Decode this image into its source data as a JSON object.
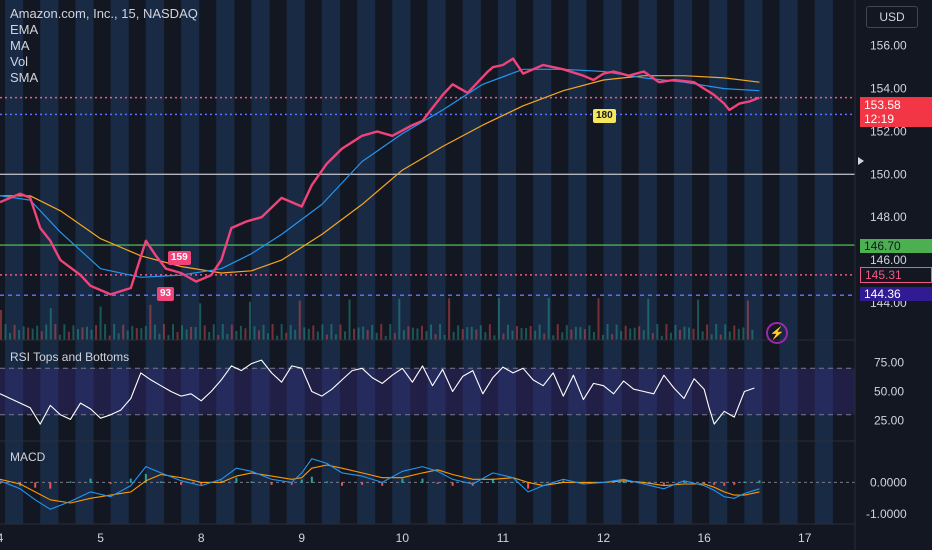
{
  "header": {
    "title": "Amazon.com, Inc., 15, NASDAQ",
    "indicators": [
      "EMA",
      "MA",
      "Vol",
      "SMA"
    ],
    "currency": "USD"
  },
  "labels": {
    "rsi": "RSI Tops and Bottoms",
    "macd": "MACD",
    "marker_159": "159",
    "marker_93": "93",
    "marker_180": "180",
    "last_price": "153.58",
    "countdown": "12:19"
  },
  "price_tags": [
    {
      "value": "146.70",
      "bg": "#4caf50",
      "fg": "#131722"
    },
    {
      "value": "145.31",
      "bg": "#131722",
      "fg": "#f05a82"
    },
    {
      "value": "144.36",
      "bg": "#311b92",
      "fg": "#ffffff"
    }
  ],
  "colors": {
    "price": "#f0437a",
    "ema": "#2196f3",
    "sma": "#f5a623",
    "session_band": "#1f3b60",
    "rsi": "#ffffff",
    "macd": "#2196f3",
    "signal": "#ff9800",
    "green_line": "#4caf50",
    "ref_line": "#b2b5be"
  },
  "chart_data": [
    {
      "type": "line",
      "title": "Amazon.com, Inc., 15, NASDAQ",
      "x_ticks": [
        "4",
        "5",
        "8",
        "9",
        "10",
        "11",
        "12",
        "16",
        "17"
      ],
      "y_ticks": [
        156.0,
        154.0,
        152.0,
        150.0,
        148.0,
        146.0,
        144.0
      ],
      "ylim": [
        143.3,
        157.2
      ],
      "xlim": [
        0,
        8.5
      ],
      "grid": false,
      "horizontal_levels": [
        {
          "value": 150.0,
          "style": "solid",
          "color": "#b2b5be"
        },
        {
          "value": 146.7,
          "style": "solid",
          "color": "#4caf50"
        },
        {
          "value": 145.31,
          "style": "dotted",
          "color": "#f05a82"
        },
        {
          "value": 144.36,
          "style": "dashed",
          "color": "#5b6cff"
        },
        {
          "value": 153.58,
          "style": "dotted",
          "color": "#f05a82"
        },
        {
          "value": 152.8,
          "style": "dotted",
          "color": "#5b6cff"
        }
      ],
      "series": [
        {
          "name": "",
          "x": [
            0.0,
            0.2,
            0.3,
            0.35,
            0.4,
            0.5,
            0.6,
            0.8,
            0.9,
            1.0,
            1.1,
            1.3,
            1.45,
            1.55,
            1.65,
            1.8,
            1.95,
            2.1,
            2.2,
            2.3,
            2.45,
            2.6,
            2.8,
            3.0,
            3.1,
            3.25,
            3.4,
            3.5,
            3.6,
            3.75,
            3.9,
            4.1,
            4.2,
            4.3,
            4.4,
            4.5,
            4.65,
            4.75,
            4.85,
            4.9,
            5.0,
            5.1,
            5.2,
            5.3,
            5.4,
            5.6,
            5.8,
            5.9,
            6.0,
            6.1,
            6.25,
            6.4,
            6.55,
            6.7,
            6.9,
            7.0,
            7.1,
            7.2,
            7.25,
            7.35,
            7.45,
            7.55
          ],
          "values": [
            148.7,
            149.1,
            148.9,
            148.2,
            147.5,
            146.9,
            146.0,
            145.3,
            144.8,
            144.6,
            144.4,
            144.7,
            146.9,
            146.2,
            145.6,
            145.4,
            145.0,
            145.3,
            146.0,
            147.5,
            147.8,
            148.0,
            148.9,
            148.5,
            149.5,
            150.5,
            151.2,
            151.5,
            151.8,
            152.0,
            151.8,
            152.3,
            152.5,
            153.1,
            153.7,
            154.2,
            153.8,
            154.3,
            154.8,
            155.0,
            155.1,
            155.4,
            154.7,
            154.9,
            155.1,
            154.9,
            154.6,
            154.4,
            154.7,
            154.8,
            154.6,
            154.8,
            154.3,
            154.4,
            154.3,
            154.0,
            153.7,
            153.3,
            153.0,
            153.3,
            153.4,
            153.58
          ]
        },
        {
          "name": "EMA",
          "x": [
            0.0,
            0.3,
            0.6,
            1.0,
            1.4,
            1.8,
            2.2,
            2.5,
            2.8,
            3.2,
            3.6,
            4.0,
            4.4,
            4.8,
            5.2,
            5.6,
            6.0,
            6.4,
            6.8,
            7.2,
            7.55
          ],
          "values": [
            149.0,
            148.8,
            147.3,
            145.6,
            145.2,
            145.3,
            145.6,
            146.3,
            147.2,
            148.6,
            150.6,
            151.9,
            153.0,
            154.2,
            154.9,
            154.9,
            154.8,
            154.5,
            154.3,
            154.0,
            153.9
          ]
        },
        {
          "name": "SMA",
          "x": [
            0.0,
            0.3,
            0.6,
            1.0,
            1.4,
            1.8,
            2.2,
            2.5,
            2.8,
            3.2,
            3.6,
            4.0,
            4.4,
            4.8,
            5.2,
            5.6,
            6.0,
            6.4,
            6.8,
            7.2,
            7.55
          ],
          "values": [
            149.0,
            149.0,
            148.3,
            147.0,
            146.2,
            145.7,
            145.4,
            145.5,
            146.0,
            147.2,
            148.6,
            150.2,
            151.3,
            152.3,
            153.2,
            153.9,
            154.4,
            154.6,
            154.6,
            154.5,
            154.3
          ]
        }
      ]
    },
    {
      "type": "line",
      "title": "RSI Tops and Bottoms",
      "y_ticks": [
        75.0,
        50.0,
        25.0
      ],
      "ylim": [
        10,
        90
      ],
      "bands": [
        70,
        30
      ],
      "series": [
        {
          "name": "",
          "x": [
            0.0,
            0.15,
            0.3,
            0.4,
            0.5,
            0.6,
            0.7,
            0.8,
            0.9,
            1.0,
            1.1,
            1.2,
            1.3,
            1.4,
            1.5,
            1.6,
            1.7,
            1.8,
            1.9,
            2.0,
            2.1,
            2.2,
            2.3,
            2.4,
            2.5,
            2.6,
            2.7,
            2.8,
            2.9,
            3.0,
            3.1,
            3.2,
            3.3,
            3.4,
            3.5,
            3.6,
            3.7,
            3.8,
            3.9,
            4.0,
            4.1,
            4.2,
            4.3,
            4.4,
            4.5,
            4.6,
            4.7,
            4.8,
            4.9,
            5.0,
            5.1,
            5.2,
            5.3,
            5.4,
            5.5,
            5.6,
            5.7,
            5.8,
            5.9,
            6.0,
            6.1,
            6.2,
            6.3,
            6.4,
            6.5,
            6.6,
            6.7,
            6.8,
            6.9,
            7.0,
            7.05,
            7.1,
            7.2,
            7.3,
            7.4,
            7.5
          ],
          "values": [
            48,
            42,
            36,
            22,
            38,
            30,
            26,
            40,
            35,
            27,
            30,
            34,
            44,
            66,
            60,
            55,
            50,
            46,
            48,
            42,
            50,
            60,
            72,
            68,
            74,
            77,
            66,
            58,
            72,
            70,
            50,
            46,
            52,
            60,
            68,
            70,
            62,
            57,
            64,
            70,
            58,
            72,
            55,
            69,
            50,
            63,
            68,
            48,
            62,
            71,
            66,
            70,
            60,
            55,
            66,
            46,
            64,
            43,
            57,
            55,
            48,
            59,
            52,
            50,
            48,
            64,
            53,
            44,
            61,
            52,
            36,
            22,
            33,
            28,
            50,
            53
          ]
        }
      ]
    },
    {
      "type": "line",
      "title": "MACD",
      "y_ticks": [
        0.0,
        -1.0
      ],
      "ylim": [
        -1.25,
        1.15
      ],
      "series": [
        {
          "name": "",
          "x": [
            0.0,
            0.2,
            0.35,
            0.5,
            0.7,
            0.9,
            1.1,
            1.3,
            1.45,
            1.6,
            1.8,
            2.0,
            2.2,
            2.35,
            2.5,
            2.7,
            2.9,
            3.0,
            3.1,
            3.25,
            3.4,
            3.6,
            3.8,
            4.0,
            4.2,
            4.35,
            4.5,
            4.7,
            4.9,
            5.1,
            5.25,
            5.4,
            5.6,
            5.8,
            6.0,
            6.2,
            6.4,
            6.6,
            6.8,
            7.0,
            7.1,
            7.2,
            7.3,
            7.4,
            7.55
          ],
          "values": [
            0.05,
            -0.2,
            -0.55,
            -0.85,
            -0.6,
            -0.3,
            -0.45,
            -0.1,
            0.5,
            0.3,
            0.05,
            -0.1,
            0.1,
            0.45,
            0.35,
            0.1,
            0.0,
            0.3,
            0.75,
            0.6,
            0.3,
            0.2,
            0.0,
            0.35,
            0.5,
            0.35,
            0.1,
            -0.05,
            0.3,
            0.15,
            -0.3,
            -0.1,
            0.1,
            -0.05,
            0.0,
            0.1,
            -0.05,
            -0.2,
            0.05,
            -0.1,
            -0.25,
            -0.45,
            -0.5,
            -0.35,
            -0.2
          ]
        },
        {
          "name": "",
          "x": [
            0.0,
            0.2,
            0.35,
            0.5,
            0.7,
            0.9,
            1.1,
            1.3,
            1.45,
            1.6,
            1.8,
            2.0,
            2.2,
            2.35,
            2.5,
            2.7,
            2.9,
            3.0,
            3.1,
            3.25,
            3.4,
            3.6,
            3.8,
            4.0,
            4.2,
            4.35,
            4.5,
            4.7,
            4.9,
            5.1,
            5.25,
            5.4,
            5.6,
            5.8,
            6.0,
            6.2,
            6.4,
            6.6,
            6.8,
            7.0,
            7.1,
            7.2,
            7.3,
            7.4,
            7.55
          ],
          "values": [
            0.1,
            -0.05,
            -0.3,
            -0.55,
            -0.65,
            -0.5,
            -0.4,
            -0.3,
            0.05,
            0.25,
            0.15,
            0.0,
            0.0,
            0.2,
            0.3,
            0.2,
            0.1,
            0.15,
            0.45,
            0.55,
            0.45,
            0.3,
            0.15,
            0.15,
            0.3,
            0.4,
            0.25,
            0.1,
            0.1,
            0.15,
            0.0,
            -0.1,
            0.0,
            0.0,
            0.0,
            0.05,
            0.0,
            -0.1,
            -0.05,
            -0.05,
            -0.15,
            -0.3,
            -0.4,
            -0.4,
            -0.3
          ]
        }
      ]
    }
  ]
}
